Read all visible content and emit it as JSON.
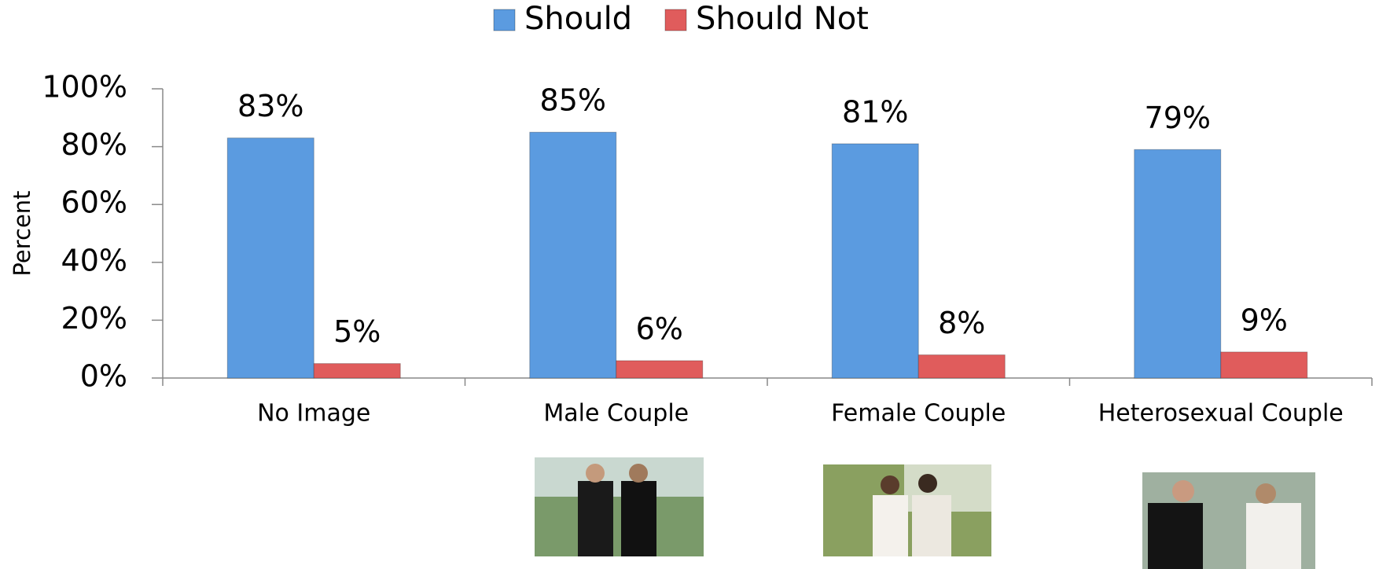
{
  "chart_data": {
    "type": "bar",
    "y_label": "Percent",
    "categories": [
      "No Image",
      "Male Couple",
      "Female Couple",
      "Heterosexual Couple"
    ],
    "series": [
      {
        "name": "Should",
        "color": "#5b9be0",
        "values": [
          83,
          85,
          81,
          79
        ],
        "value_labels": [
          "83%",
          "85%",
          "81%",
          "79%"
        ]
      },
      {
        "name": "Should Not",
        "color": "#e05c5c",
        "values": [
          5,
          6,
          8,
          9
        ],
        "value_labels": [
          "5%",
          "6%",
          "8%",
          "9%"
        ]
      }
    ],
    "ylim": [
      0,
      100
    ],
    "yticks": [
      {
        "value": 0,
        "label": "0%"
      },
      {
        "value": 20,
        "label": "20%"
      },
      {
        "value": 40,
        "label": "40%"
      },
      {
        "value": 60,
        "label": "60%"
      },
      {
        "value": 80,
        "label": "80%"
      },
      {
        "value": 100,
        "label": "100%"
      }
    ],
    "legend": "top"
  }
}
